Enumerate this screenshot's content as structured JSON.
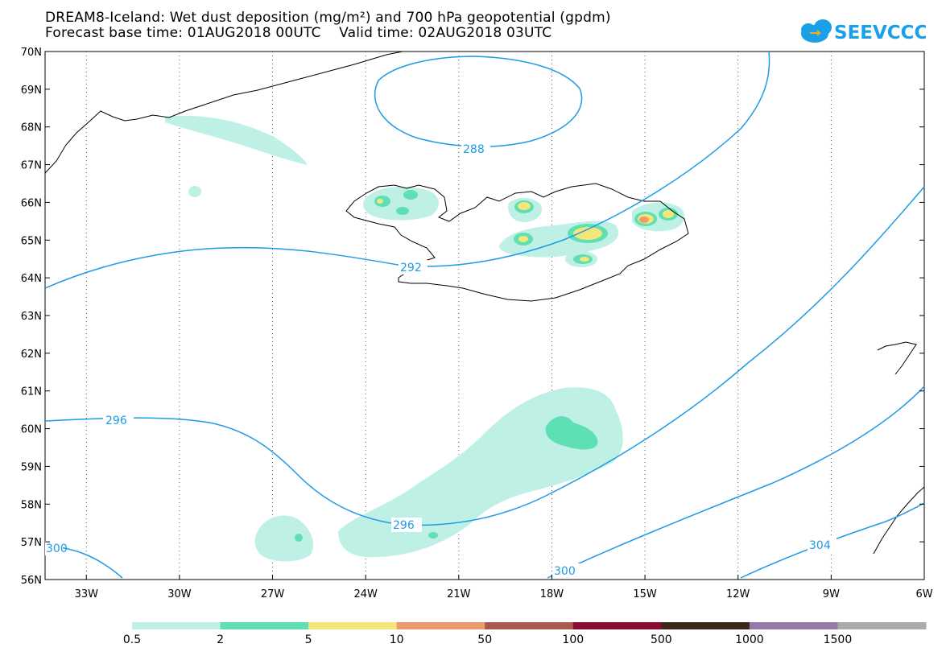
{
  "header": {
    "title_line1": "DREAM8-Iceland: Wet dust deposition (mg/m²) and 700 hPa geopotential (gpdm)",
    "title_line2": "Forecast base time: 01AUG2018 00UTC    Valid time: 02AUG2018 03UTC",
    "logo_text": "SEEVCCC"
  },
  "map": {
    "lat_labels": [
      "70N",
      "69N",
      "68N",
      "67N",
      "66N",
      "65N",
      "64N",
      "63N",
      "62N",
      "61N",
      "60N",
      "59N",
      "58N",
      "57N",
      "56N"
    ],
    "lon_labels": [
      "33W",
      "30W",
      "27W",
      "24W",
      "21W",
      "18W",
      "15W",
      "12W",
      "9W",
      "6W"
    ],
    "contour_labels": [
      "288",
      "292",
      "296",
      "296",
      "300",
      "304",
      "300"
    ],
    "contour_color": "#1e9be6",
    "coast_color": "#000000"
  },
  "legend": {
    "levels": [
      "0.5",
      "2",
      "5",
      "10",
      "50",
      "100",
      "500",
      "1000",
      "1500"
    ],
    "colors": [
      "#bff0e6",
      "#5fe0b4",
      "#f5e67a",
      "#eb9b6e",
      "#a85a4c",
      "#8c0a32",
      "#3c2814",
      "#9678aa",
      "#aaaaaa"
    ]
  }
}
